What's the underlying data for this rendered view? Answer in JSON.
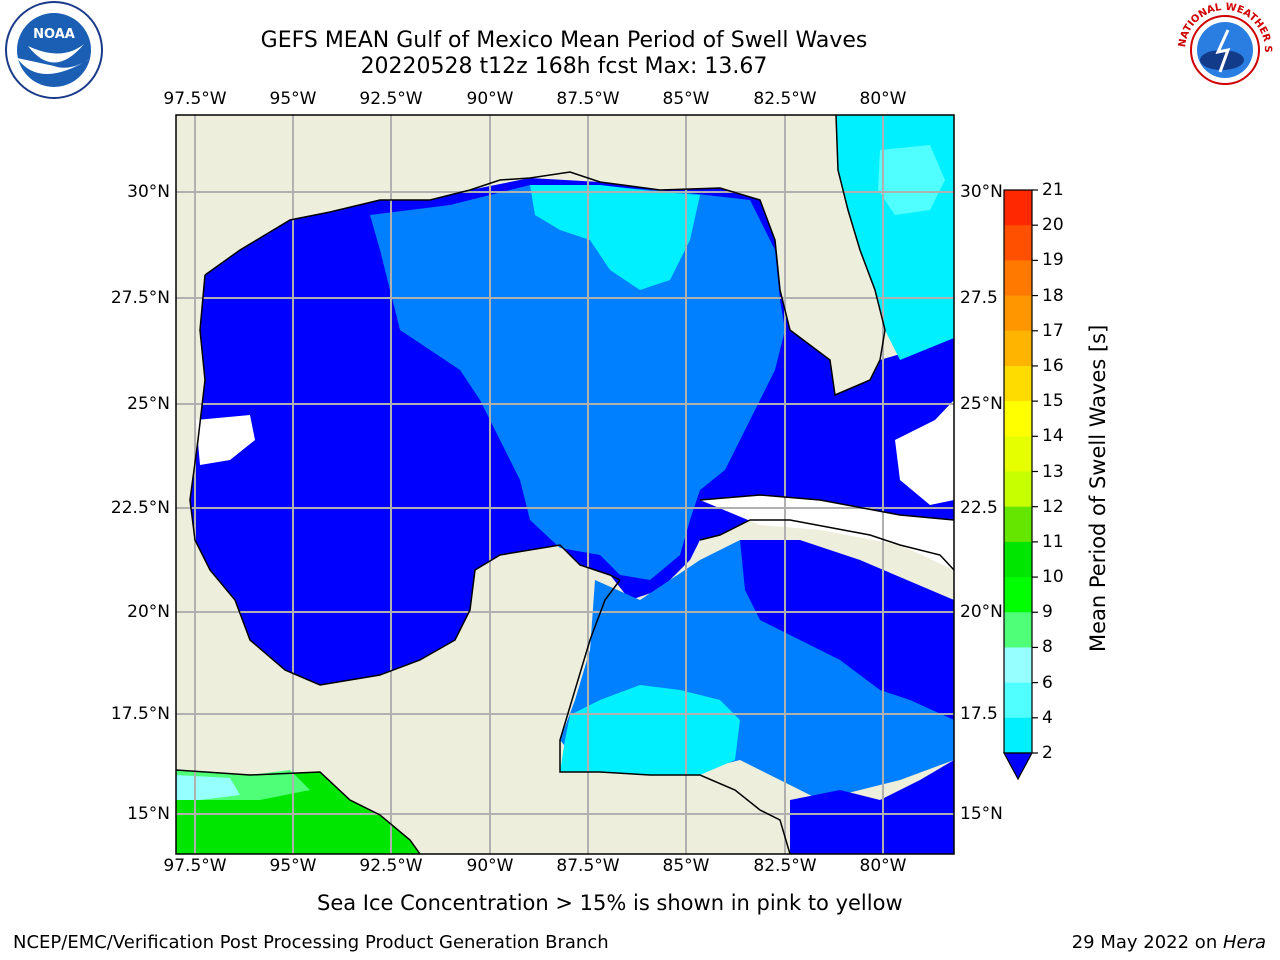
{
  "header": {
    "title_line1": "GEFS MEAN Gulf of Mexico Mean Period of Swell Waves",
    "title_line2": "20220528 t12z 168h fcst   Max: 13.67"
  },
  "map": {
    "lon_ticks": [
      "97.5°W",
      "95°W",
      "92.5°W",
      "90°W",
      "87.5°W",
      "85°W",
      "82.5°W",
      "80°W"
    ],
    "lat_ticks": [
      "30°N",
      "27.5°N",
      "25°N",
      "22.5°N",
      "20°N",
      "17.5°N",
      "15°N"
    ],
    "lat_ticks_right": [
      "30°N",
      "27.5",
      "25°N",
      "22.5",
      "20°N",
      "17.5",
      "15°N"
    ],
    "land_color": "#eeeedd",
    "coast_color": "#000000",
    "grid_color": "#b0b0b0"
  },
  "colorbar": {
    "label": "Mean Period of Swell Waves [s]",
    "ticks": [
      "21",
      "20",
      "19",
      "18",
      "17",
      "16",
      "15",
      "14",
      "13",
      "12",
      "11",
      "10",
      "9",
      "8",
      "6",
      "4",
      "2"
    ],
    "colors": [
      "#ff0000",
      "#ff2800",
      "#ff5000",
      "#ff7800",
      "#ff9600",
      "#ffb400",
      "#ffdc00",
      "#ffff00",
      "#e6ff00",
      "#c8ff00",
      "#64e600",
      "#00e600",
      "#00ff00",
      "#50ff78",
      "#96ffff",
      "#50ffff",
      "#00f0ff",
      "#0080ff"
    ]
  },
  "caption": "Sea Ice Concentration > 15% is shown in pink to yellow",
  "footer": {
    "left": "NCEP/EMC/Verification Post Processing Product Generation Branch",
    "right_date": "29 May 2022 on ",
    "right_host": "Hera"
  },
  "logos": {
    "noaa_text": "NOAA",
    "nws_text": "NATIONAL WEATHER SERVICE"
  }
}
